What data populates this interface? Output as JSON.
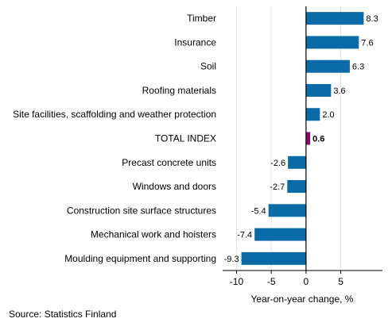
{
  "chart_data": {
    "type": "bar",
    "orientation": "horizontal",
    "categories": [
      "Timber",
      "Insurance",
      "Soil",
      "Roofing materials",
      "Site facilities, scaffolding and weather protection",
      "TOTAL INDEX",
      "Precast concrete units",
      "Windows and doors",
      "Construction site surface structures",
      "Mechanical work and hoisters",
      "Moulding equipment and supporting"
    ],
    "values": [
      8.3,
      7.6,
      6.3,
      3.6,
      2.0,
      0.6,
      -2.6,
      -2.7,
      -5.4,
      -7.4,
      -9.3
    ],
    "value_labels": [
      "8.3",
      "7.6",
      "6.3",
      "3.6",
      "2.0",
      "0.6",
      "-2.6",
      "-2.7",
      "-5.4",
      "-7.4",
      "-9.3"
    ],
    "highlight_category": "TOTAL INDEX",
    "xlabel": "Year-on-year change, %",
    "xlim": [
      -12,
      11
    ],
    "xticks": [
      -10,
      -5,
      0,
      5
    ],
    "grid": true,
    "colors": {
      "bar": "#0b6aa8",
      "highlight": "#8a0a69",
      "grid": "#e3e3e3",
      "axis": "#000000"
    }
  },
  "source": "Source: Statistics Finland"
}
